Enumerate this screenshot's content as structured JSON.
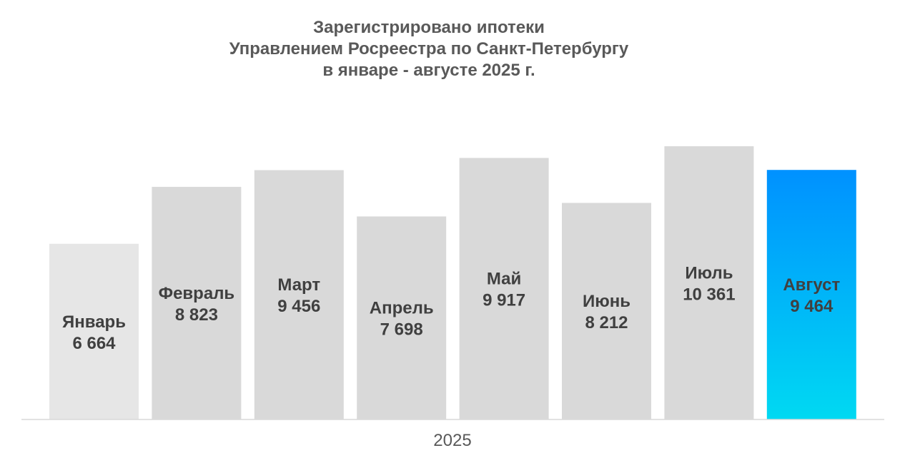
{
  "title_lines": [
    "Зарегистрировано ипотеки",
    "Управлением Росреестра по Санкт-Петербургу",
    "в январе - августе 2025 г."
  ],
  "chart_data": {
    "type": "bar",
    "title": "Зарегистрировано ипотеки Управлением Росреестра по Санкт-Петербургу в январе - августе 2025 г.",
    "xlabel": "2025",
    "ylabel": "",
    "categories": [
      "Январь",
      "Февраль",
      "Март",
      "Апрель",
      "Май",
      "Июнь",
      "Июль",
      "Август"
    ],
    "values": [
      6664,
      8823,
      9456,
      7698,
      9917,
      8212,
      10361,
      9464
    ],
    "value_labels": [
      "6 664",
      "8 823",
      "9 456",
      "7 698",
      "9 917",
      "8 212",
      "10 361",
      "9 464"
    ],
    "ylim": [
      0,
      10361
    ],
    "grid": false,
    "legend": "none",
    "colors": {
      "first_bar": "#e6e6e6",
      "bar": "#d9d9d9",
      "highlight_top": "#0091ff",
      "highlight_bottom": "#00d9f2",
      "label": "#404040",
      "axis": "#d9d9d9"
    },
    "highlight_index": 7
  }
}
